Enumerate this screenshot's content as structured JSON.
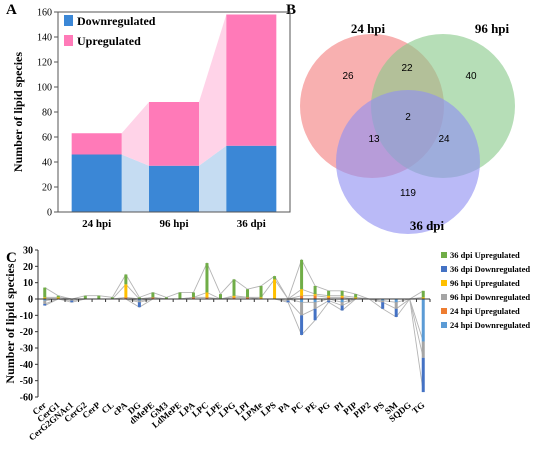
{
  "panels": {
    "a_label": "A",
    "b_label": "B",
    "c_label": "C"
  },
  "chart_data": [
    {
      "panel": "A",
      "type": "bar",
      "stacked": true,
      "categories": [
        "24 hpi",
        "96 hpi",
        "36 dpi"
      ],
      "series": [
        {
          "name": "Downregulated",
          "values": [
            46,
            37,
            53
          ],
          "color": "#3b87d6"
        },
        {
          "name": "Upregulated",
          "values": [
            17,
            51,
            105
          ],
          "color": "#ff7ab8"
        }
      ],
      "ylabel": "Number of lipid species",
      "xlabel": "",
      "ylim": [
        0,
        160
      ],
      "yticks": [
        0,
        20,
        40,
        60,
        80,
        100,
        120,
        140,
        160
      ],
      "legend": "top-left",
      "connector_colors": {
        "down": "#c5dcf2",
        "up": "#ffd3e8"
      }
    },
    {
      "panel": "B",
      "type": "venn",
      "sets": [
        {
          "name": "24 hpi",
          "color": "#f47f7f"
        },
        {
          "name": "96 hpi",
          "color": "#89c98a"
        },
        {
          "name": "36 dpi",
          "color": "#8f8ff2"
        }
      ],
      "regions": {
        "only_24hpi": 26,
        "only_96hpi": 40,
        "only_36dpi": 119,
        "24hpi_96hpi": 22,
        "24hpi_36dpi": 13,
        "96hpi_36dpi": 24,
        "all": 2
      }
    },
    {
      "panel": "C",
      "type": "bar",
      "stacked": true,
      "ylabel": "Number of lipid species",
      "ylim": [
        -60,
        30
      ],
      "yticks": [
        30,
        20,
        10,
        0,
        -10,
        -20,
        -30,
        -40,
        -50,
        -60
      ],
      "categories": [
        "Cer",
        "CerG1",
        "CerG2GNAc1",
        "CerG2",
        "CerP",
        "CL",
        "cPA",
        "DG",
        "dMePE",
        "GM3",
        "LdMePE",
        "LPA",
        "LPC",
        "LPE",
        "LPG",
        "LPI",
        "LPMe",
        "LPS",
        "PA",
        "PC",
        "PE",
        "PG",
        "PI",
        "PIP",
        "PIP2",
        "PS",
        "SM",
        "SQDG",
        "TG"
      ],
      "series": [
        {
          "name": "24 hpi Upregulated",
          "group": "up",
          "color": "#ee7d31",
          "values": [
            0,
            0,
            0,
            0,
            0,
            0,
            1,
            0,
            1,
            0,
            0,
            1,
            1,
            0,
            1,
            1,
            0,
            0,
            0,
            2,
            2,
            1,
            1,
            0,
            0,
            0,
            0,
            0,
            0
          ]
        },
        {
          "name": "96 hpi Upregulated",
          "group": "up",
          "color": "#ffc000",
          "values": [
            1,
            1,
            0,
            0,
            0,
            0,
            8,
            0,
            0,
            0,
            0,
            0,
            3,
            0,
            1,
            0,
            1,
            12,
            0,
            4,
            1,
            1,
            1,
            1,
            0,
            0,
            0,
            0,
            1
          ]
        },
        {
          "name": "36 dpi Upregulated",
          "group": "up",
          "color": "#70ad47",
          "values": [
            6,
            1,
            0,
            2,
            2,
            1,
            6,
            1,
            3,
            1,
            4,
            3,
            18,
            3,
            10,
            5,
            7,
            2,
            0,
            18,
            5,
            3,
            3,
            2,
            0,
            0,
            0,
            0,
            4
          ]
        },
        {
          "name": "24 hpi Downregulated",
          "group": "down",
          "color": "#5b9bd5",
          "values": [
            -1,
            0,
            0,
            0,
            0,
            0,
            0,
            -1,
            0,
            0,
            0,
            0,
            0,
            0,
            0,
            0,
            0,
            0,
            0,
            -2,
            -2,
            0,
            -2,
            0,
            0,
            -1,
            -2,
            0,
            -26
          ]
        },
        {
          "name": "96 hpi Downregulated",
          "group": "down",
          "color": "#a5a5a5",
          "values": [
            -2,
            0,
            -1,
            0,
            0,
            0,
            0,
            -1,
            0,
            0,
            0,
            0,
            0,
            0,
            0,
            0,
            0,
            0,
            -1,
            -8,
            -4,
            -1,
            -2,
            0,
            0,
            -1,
            -4,
            0,
            -10
          ]
        },
        {
          "name": "36 dpi Downregulated",
          "group": "down",
          "color": "#4472c4",
          "values": [
            -1,
            0,
            -1,
            0,
            0,
            0,
            0,
            -3,
            0,
            0,
            0,
            0,
            0,
            0,
            0,
            0,
            0,
            0,
            -1,
            -12,
            -7,
            -1,
            -3,
            0,
            0,
            -4,
            -5,
            0,
            -21
          ]
        }
      ],
      "legend": "right"
    }
  ]
}
